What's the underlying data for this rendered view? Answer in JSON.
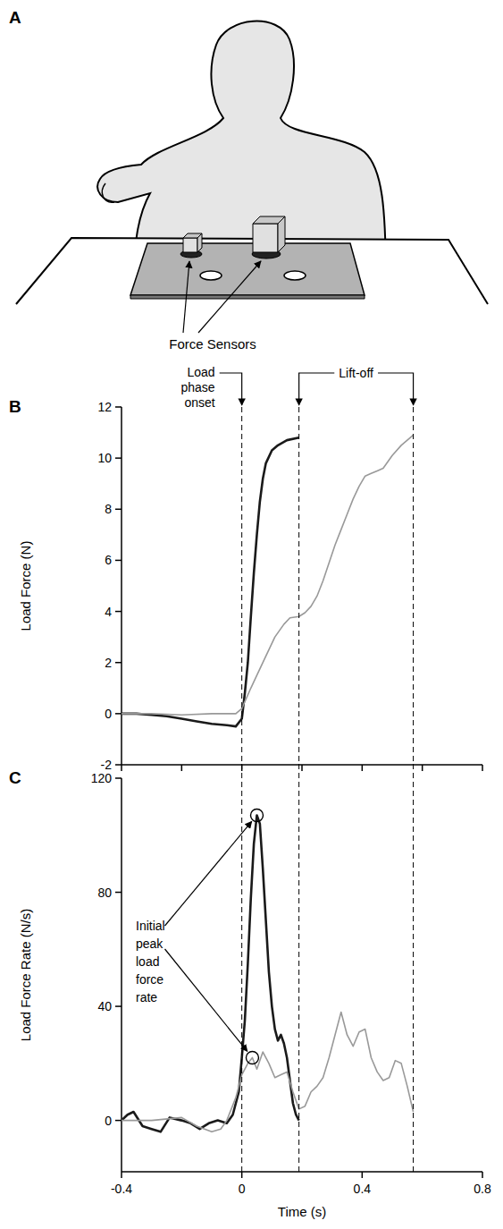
{
  "illustration": {
    "panel": "A",
    "label": "Force Sensors"
  },
  "chart_data": [
    {
      "type": "line",
      "panel": "B",
      "y_label": "Load Force (N)",
      "xlim": [
        -0.4,
        0.8
      ],
      "xticks": [
        -0.4,
        -0.2,
        0,
        0.2,
        0.4,
        0.6,
        0.8
      ],
      "ylim": [
        -2,
        12
      ],
      "yticks": [
        -2,
        0,
        2,
        4,
        6,
        8,
        10,
        12
      ],
      "tick_labels": "y",
      "annotations": [
        {
          "text": "Load phase onset",
          "x": [
            0
          ]
        },
        {
          "text": "Lift-off",
          "x": [
            0.19,
            0.57
          ]
        }
      ],
      "series": [
        {
          "color": "#1a1a1a",
          "x": [
            -0.4,
            -0.35,
            -0.3,
            -0.25,
            -0.2,
            -0.15,
            -0.1,
            -0.05,
            -0.02,
            0,
            0.01,
            0.02,
            0.03,
            0.04,
            0.05,
            0.06,
            0.07,
            0.08,
            0.1,
            0.12,
            0.15,
            0.19
          ],
          "values": [
            0,
            0,
            -0.05,
            -0.1,
            -0.2,
            -0.3,
            -0.4,
            -0.45,
            -0.5,
            -0.2,
            0.8,
            2,
            3.8,
            5.5,
            7,
            8.3,
            9.2,
            9.8,
            10.3,
            10.5,
            10.7,
            10.8
          ]
        },
        {
          "color": "#999999",
          "x": [
            -0.4,
            -0.3,
            -0.2,
            -0.1,
            -0.02,
            0,
            0.03,
            0.07,
            0.11,
            0.14,
            0.16,
            0.19,
            0.21,
            0.23,
            0.25,
            0.27,
            0.29,
            0.31,
            0.33,
            0.35,
            0.37,
            0.39,
            0.41,
            0.43,
            0.45,
            0.47,
            0.5,
            0.53,
            0.57
          ],
          "values": [
            0,
            0,
            -0.05,
            0,
            0,
            0.2,
            1,
            2,
            3,
            3.5,
            3.75,
            3.8,
            3.95,
            4.2,
            4.6,
            5.2,
            5.9,
            6.6,
            7.2,
            7.8,
            8.4,
            8.9,
            9.3,
            9.4,
            9.5,
            9.6,
            10.1,
            10.5,
            10.9
          ]
        }
      ]
    },
    {
      "type": "line",
      "panel": "C",
      "y_label": "Load Force Rate (N/s)",
      "x_label": "Time (s)",
      "xlim": [
        -0.4,
        0.8
      ],
      "xticks": [
        -0.4,
        0,
        0.4,
        0.8
      ],
      "ylim": [
        -18,
        120
      ],
      "yticks": [
        0,
        40,
        80,
        120
      ],
      "vlines": [
        0,
        0.19,
        0.57
      ],
      "annotations": [
        {
          "text": "Initial peak load force rate",
          "points": [
            {
              "x": 0.05,
              "y": 107
            },
            {
              "x": 0.035,
              "y": 22
            }
          ]
        }
      ],
      "series": [
        {
          "color": "#1a1a1a",
          "x": [
            -0.4,
            -0.38,
            -0.36,
            -0.33,
            -0.3,
            -0.27,
            -0.24,
            -0.2,
            -0.17,
            -0.14,
            -0.11,
            -0.08,
            -0.05,
            -0.03,
            -0.01,
            0,
            0.01,
            0.02,
            0.03,
            0.04,
            0.05,
            0.06,
            0.07,
            0.08,
            0.09,
            0.1,
            0.11,
            0.12,
            0.13,
            0.14,
            0.15,
            0.16,
            0.17,
            0.18,
            0.19
          ],
          "values": [
            0,
            2,
            3,
            -2,
            -3,
            -4,
            1,
            0,
            -1,
            -3,
            -1,
            0,
            -1,
            2,
            10,
            22,
            35,
            55,
            78,
            97,
            107,
            104,
            88,
            70,
            52,
            40,
            32,
            28,
            30,
            27,
            22,
            14,
            6,
            2,
            0
          ]
        },
        {
          "color": "#999999",
          "x": [
            -0.4,
            -0.3,
            -0.2,
            -0.15,
            -0.1,
            -0.07,
            -0.05,
            -0.02,
            0,
            0.02,
            0.035,
            0.05,
            0.07,
            0.09,
            0.11,
            0.13,
            0.15,
            0.17,
            0.19,
            0.21,
            0.23,
            0.25,
            0.27,
            0.29,
            0.31,
            0.33,
            0.35,
            0.37,
            0.39,
            0.41,
            0.43,
            0.45,
            0.47,
            0.49,
            0.51,
            0.53,
            0.55,
            0.57
          ],
          "values": [
            0,
            0,
            1,
            -2,
            -4,
            -3,
            0,
            8,
            16,
            20,
            22,
            18,
            24,
            20,
            15,
            16,
            17,
            10,
            4,
            5,
            10,
            12,
            15,
            22,
            30,
            38,
            30,
            26,
            31,
            32,
            22,
            17,
            14,
            15,
            21,
            20,
            12,
            3
          ]
        }
      ]
    }
  ]
}
